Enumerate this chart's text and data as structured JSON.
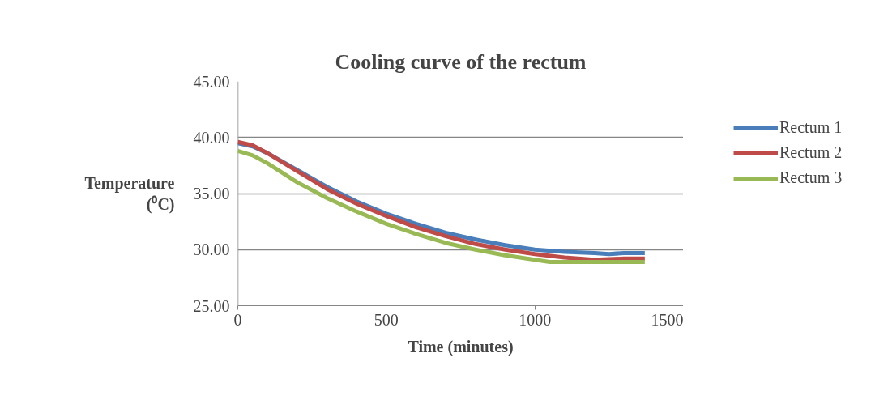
{
  "chart_data": {
    "type": "line",
    "title": "Cooling curve of the rectum",
    "xlabel": "Time (minutes)",
    "ylabel": "Temperature (⁰C)",
    "xlim": [
      0,
      1500
    ],
    "xticks": [
      0,
      500,
      1000,
      1500
    ],
    "ylim": [
      25,
      45
    ],
    "yticks": [
      {
        "value": 25,
        "label": "25.00"
      },
      {
        "value": 30,
        "label": "30.00"
      },
      {
        "value": 35,
        "label": "35.00"
      },
      {
        "value": 40,
        "label": "40.00"
      },
      {
        "value": 45,
        "label": "45.00"
      }
    ],
    "grid": "y",
    "legend": "right",
    "marker": "none",
    "line_style": "solid",
    "series": [
      {
        "name": "Rectum 1",
        "color": "#4a7ebb",
        "x": [
          0,
          50,
          100,
          200,
          300,
          400,
          500,
          600,
          700,
          800,
          900,
          1000,
          1100,
          1200,
          1250,
          1300,
          1370
        ],
        "values": [
          39.5,
          39.2,
          38.6,
          37.1,
          35.6,
          34.3,
          33.2,
          32.3,
          31.5,
          30.9,
          30.4,
          30.0,
          29.8,
          29.7,
          29.6,
          29.7,
          29.7
        ]
      },
      {
        "name": "Rectum 2",
        "color": "#be4b48",
        "x": [
          0,
          50,
          100,
          200,
          300,
          400,
          500,
          600,
          700,
          800,
          900,
          1000,
          1100,
          1200,
          1300,
          1370
        ],
        "values": [
          39.6,
          39.3,
          38.6,
          37.0,
          35.4,
          34.1,
          33.0,
          32.0,
          31.2,
          30.5,
          30.0,
          29.6,
          29.3,
          29.1,
          29.2,
          29.2
        ]
      },
      {
        "name": "Rectum 3",
        "color": "#98b954",
        "x": [
          0,
          50,
          100,
          200,
          300,
          400,
          500,
          600,
          700,
          800,
          900,
          1000,
          1050,
          1100,
          1370
        ],
        "values": [
          38.8,
          38.4,
          37.7,
          36.0,
          34.6,
          33.4,
          32.3,
          31.4,
          30.6,
          30.0,
          29.5,
          29.1,
          28.9,
          28.9,
          28.9
        ]
      }
    ]
  }
}
